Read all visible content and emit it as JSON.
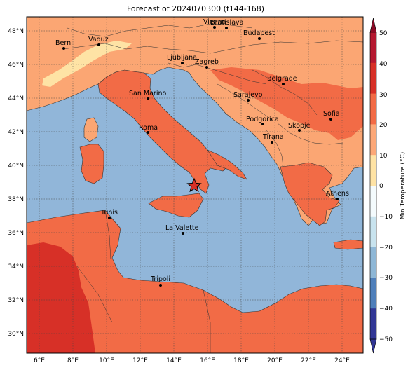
{
  "title": "Forecast of 2024070300 (f144-168)",
  "colorbar": {
    "label": "Min Temperature (°C)",
    "ticks": [
      "50",
      "40",
      "30",
      "20",
      "10",
      "0",
      "−10",
      "−20",
      "−30",
      "−40",
      "−50"
    ],
    "colors": [
      "#8b0a25",
      "#b51830",
      "#d73027",
      "#f26b46",
      "#fca878",
      "#fee3a5",
      "#f4fbfd",
      "#c8e3ee",
      "#8eb7d6",
      "#4f7fba",
      "#313695"
    ]
  },
  "axes": {
    "lon_ticks": [
      "6°E",
      "8°E",
      "10°E",
      "12°E",
      "14°E",
      "16°E",
      "18°E",
      "20°E",
      "22°E",
      "24°E"
    ],
    "lat_ticks": [
      "48°N",
      "46°N",
      "44°N",
      "42°N",
      "40°N",
      "38°N",
      "36°N",
      "34°N",
      "32°N",
      "30°N"
    ]
  },
  "marker": "star",
  "cities": [
    {
      "name": "Vienna"
    },
    {
      "name": "Bratislava"
    },
    {
      "name": "Vaduz"
    },
    {
      "name": "Bern"
    },
    {
      "name": "Budapest"
    },
    {
      "name": "Ljubljana"
    },
    {
      "name": "Zagreb"
    },
    {
      "name": "Belgrade"
    },
    {
      "name": "San Marino"
    },
    {
      "name": "Sarajevo"
    },
    {
      "name": "Sofia"
    },
    {
      "name": "Podgorica"
    },
    {
      "name": "Skopje"
    },
    {
      "name": "Roma"
    },
    {
      "name": "Tirana"
    },
    {
      "name": "Athens"
    },
    {
      "name": "Tunis"
    },
    {
      "name": "La Valette"
    },
    {
      "name": "Tripoli"
    }
  ]
}
